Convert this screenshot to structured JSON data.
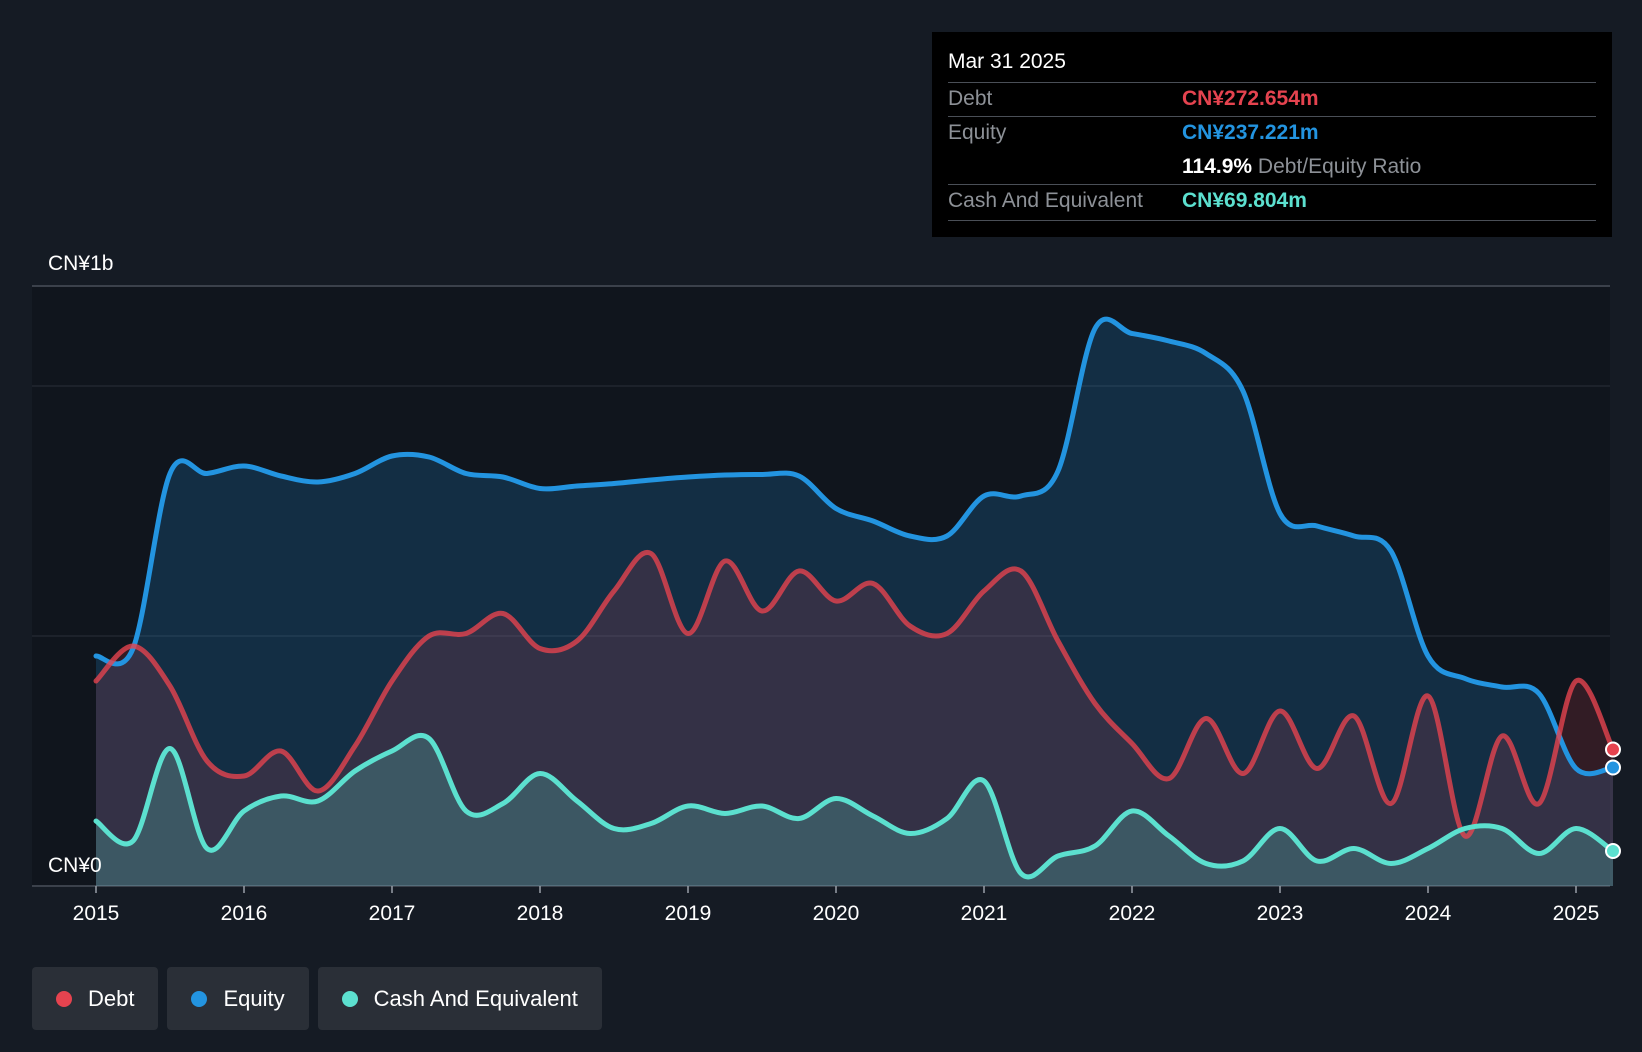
{
  "tooltip": {
    "date": "Mar 31 2025",
    "debt_label": "Debt",
    "debt_value": "CN¥272.654m",
    "equity_label": "Equity",
    "equity_value": "CN¥237.221m",
    "ratio_value": "114.9%",
    "ratio_label": "Debt/Equity Ratio",
    "cash_label": "Cash And Equivalent",
    "cash_value": "CN¥69.804m"
  },
  "legend": [
    {
      "label": "Debt",
      "color": "#e5434f"
    },
    {
      "label": "Equity",
      "color": "#2394e0"
    },
    {
      "label": "Cash And Equivalent",
      "color": "#5ce0cf"
    }
  ],
  "colors": {
    "debt": "#e5434f",
    "equity": "#2394e0",
    "cash": "#5ce0cf",
    "background": "#151b24"
  },
  "chart_data": {
    "type": "area",
    "title": "",
    "xlabel": "",
    "ylabel": "",
    "ylim": [
      0,
      1200
    ],
    "xlim": [
      2015.0,
      2025.25
    ],
    "y_tick_labels": [
      {
        "value": 1200,
        "label": "CN¥1b"
      },
      {
        "value": 0,
        "label": "CN¥0"
      }
    ],
    "x_ticks": [
      2015,
      2016,
      2017,
      2018,
      2019,
      2020,
      2021,
      2022,
      2023,
      2024,
      2025
    ],
    "series": [
      {
        "name": "Debt",
        "points": [
          [
            2015.0,
            410
          ],
          [
            2015.25,
            480
          ],
          [
            2015.5,
            400
          ],
          [
            2015.75,
            250
          ],
          [
            2016.0,
            220
          ],
          [
            2016.25,
            270
          ],
          [
            2016.5,
            190
          ],
          [
            2016.75,
            280
          ],
          [
            2017.0,
            410
          ],
          [
            2017.25,
            500
          ],
          [
            2017.5,
            505
          ],
          [
            2017.75,
            545
          ],
          [
            2018.0,
            475
          ],
          [
            2018.25,
            490
          ],
          [
            2018.5,
            590
          ],
          [
            2018.75,
            665
          ],
          [
            2019.0,
            505
          ],
          [
            2019.25,
            650
          ],
          [
            2019.5,
            550
          ],
          [
            2019.75,
            630
          ],
          [
            2020.0,
            570
          ],
          [
            2020.25,
            605
          ],
          [
            2020.5,
            520
          ],
          [
            2020.75,
            505
          ],
          [
            2021.0,
            590
          ],
          [
            2021.25,
            630
          ],
          [
            2021.5,
            490
          ],
          [
            2021.75,
            365
          ],
          [
            2022.0,
            285
          ],
          [
            2022.25,
            215
          ],
          [
            2022.5,
            335
          ],
          [
            2022.75,
            225
          ],
          [
            2023.0,
            350
          ],
          [
            2023.25,
            235
          ],
          [
            2023.5,
            340
          ],
          [
            2023.75,
            165
          ],
          [
            2024.0,
            380
          ],
          [
            2024.25,
            100
          ],
          [
            2024.5,
            300
          ],
          [
            2024.75,
            165
          ],
          [
            2025.0,
            410
          ],
          [
            2025.25,
            273
          ]
        ]
      },
      {
        "name": "Equity",
        "points": [
          [
            2015.0,
            460
          ],
          [
            2015.25,
            475
          ],
          [
            2015.5,
            825
          ],
          [
            2015.75,
            825
          ],
          [
            2016.0,
            840
          ],
          [
            2016.25,
            820
          ],
          [
            2016.5,
            808
          ],
          [
            2016.75,
            825
          ],
          [
            2017.0,
            860
          ],
          [
            2017.25,
            858
          ],
          [
            2017.5,
            825
          ],
          [
            2017.75,
            818
          ],
          [
            2018.0,
            795
          ],
          [
            2018.25,
            800
          ],
          [
            2018.5,
            805
          ],
          [
            2018.75,
            812
          ],
          [
            2019.0,
            818
          ],
          [
            2019.25,
            822
          ],
          [
            2019.5,
            823
          ],
          [
            2019.75,
            820
          ],
          [
            2020.0,
            755
          ],
          [
            2020.25,
            730
          ],
          [
            2020.5,
            700
          ],
          [
            2020.75,
            700
          ],
          [
            2021.0,
            780
          ],
          [
            2021.25,
            780
          ],
          [
            2021.5,
            830
          ],
          [
            2021.75,
            1115
          ],
          [
            2022.0,
            1105
          ],
          [
            2022.25,
            1090
          ],
          [
            2022.5,
            1065
          ],
          [
            2022.75,
            990
          ],
          [
            2023.0,
            745
          ],
          [
            2023.25,
            720
          ],
          [
            2023.5,
            700
          ],
          [
            2023.75,
            670
          ],
          [
            2024.0,
            460
          ],
          [
            2024.25,
            415
          ],
          [
            2024.5,
            398
          ],
          [
            2024.75,
            385
          ],
          [
            2025.0,
            235
          ],
          [
            2025.25,
            237
          ]
        ]
      },
      {
        "name": "Cash And Equivalent",
        "points": [
          [
            2015.0,
            130
          ],
          [
            2015.25,
            90
          ],
          [
            2015.5,
            275
          ],
          [
            2015.75,
            75
          ],
          [
            2016.0,
            150
          ],
          [
            2016.25,
            180
          ],
          [
            2016.5,
            170
          ],
          [
            2016.75,
            230
          ],
          [
            2017.0,
            270
          ],
          [
            2017.25,
            295
          ],
          [
            2017.5,
            150
          ],
          [
            2017.75,
            165
          ],
          [
            2018.0,
            225
          ],
          [
            2018.25,
            170
          ],
          [
            2018.5,
            115
          ],
          [
            2018.75,
            125
          ],
          [
            2019.0,
            160
          ],
          [
            2019.25,
            145
          ],
          [
            2019.5,
            160
          ],
          [
            2019.75,
            135
          ],
          [
            2020.0,
            175
          ],
          [
            2020.25,
            140
          ],
          [
            2020.5,
            105
          ],
          [
            2020.75,
            135
          ],
          [
            2021.0,
            210
          ],
          [
            2021.25,
            25
          ],
          [
            2021.5,
            60
          ],
          [
            2021.75,
            80
          ],
          [
            2022.0,
            150
          ],
          [
            2022.25,
            100
          ],
          [
            2022.5,
            45
          ],
          [
            2022.75,
            50
          ],
          [
            2023.0,
            115
          ],
          [
            2023.25,
            50
          ],
          [
            2023.5,
            75
          ],
          [
            2023.75,
            45
          ],
          [
            2024.0,
            75
          ],
          [
            2024.25,
            115
          ],
          [
            2024.5,
            115
          ],
          [
            2024.75,
            65
          ],
          [
            2025.0,
            115
          ],
          [
            2025.25,
            70
          ]
        ]
      }
    ]
  }
}
